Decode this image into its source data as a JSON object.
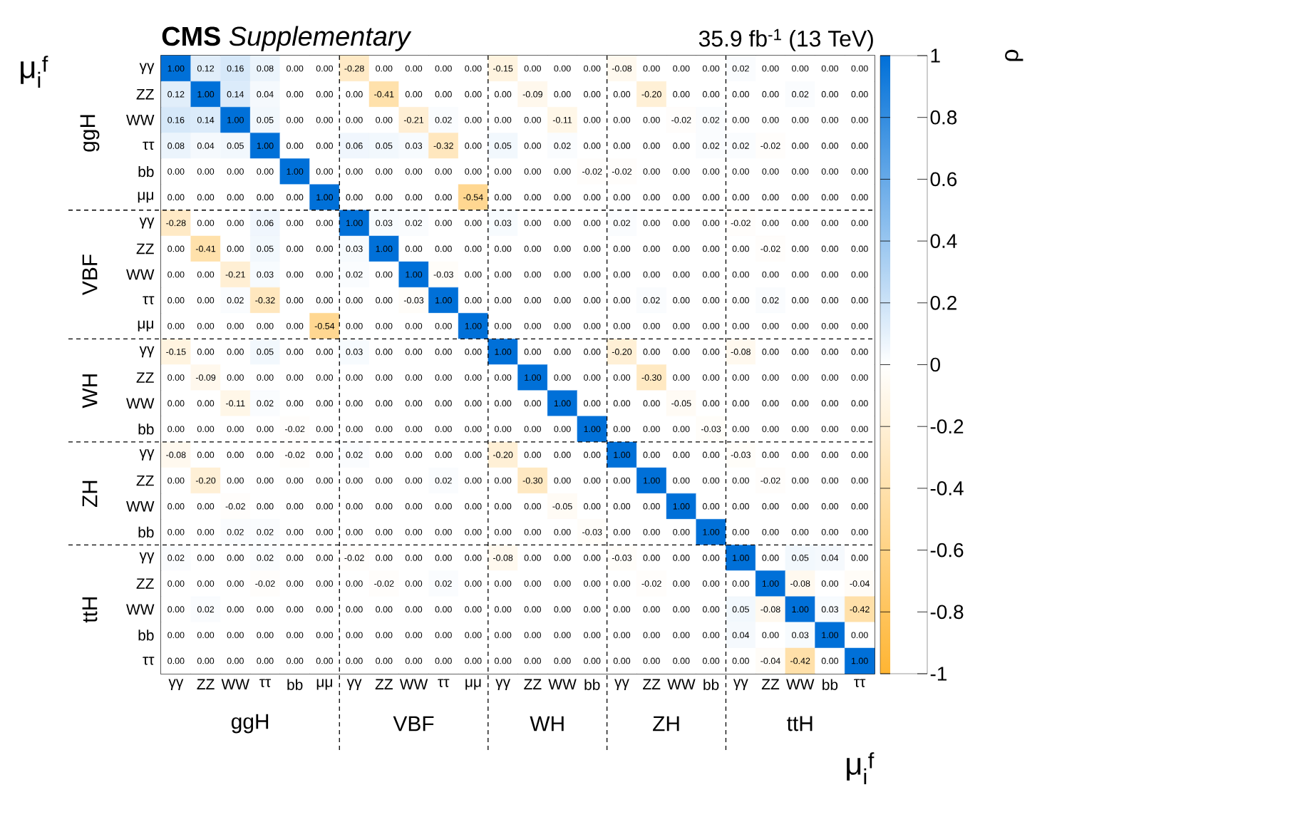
{
  "chart_data": {
    "type": "heatmap",
    "title": "**CMS** *Supplementary*",
    "subtitle": "35.9 fb$^{-1}$ (13 TeV)",
    "xlabel": "μ$_{i}$$^{f}$",
    "ylabel": "μ$_{i}$$^{f}$",
    "clabel": "ρ",
    "categories": [
      "γγ",
      "ZZ",
      "WW",
      "ττ",
      "bb",
      "μμ",
      "γγ",
      "ZZ",
      "WW",
      "ττ",
      "μμ",
      "γγ",
      "ZZ",
      "WW",
      "bb",
      "γγ",
      "ZZ",
      "WW",
      "bb",
      "γγ",
      "ZZ",
      "WW",
      "bb",
      "ττ"
    ],
    "y_categories": [
      "γγ",
      "ZZ",
      "WW",
      "ττ",
      "bb",
      "μμ",
      "γγ",
      "ZZ",
      "WW",
      "ττ",
      "μμ",
      "γγ",
      "ZZ",
      "WW",
      "bb",
      "γγ",
      "ZZ",
      "WW",
      "bb",
      "γγ",
      "ZZ",
      "WW",
      "bb",
      "ττ"
    ],
    "cells": [
      [
        1.0,
        0.12,
        0.16,
        0.08,
        0,
        0,
        -0.28,
        0,
        0,
        0,
        0,
        -0.15,
        0,
        0,
        0,
        -0.08,
        0,
        0,
        0,
        0.02,
        0,
        0,
        0,
        0
      ],
      [
        0.12,
        1.0,
        0.14,
        0.04,
        0,
        0,
        0,
        -0.41,
        0,
        0,
        0,
        0,
        -0.09,
        0,
        0,
        0,
        -0.2,
        0,
        0,
        0,
        0,
        0.02,
        0,
        0
      ],
      [
        0.16,
        0.14,
        1.0,
        0.05,
        0,
        0,
        0,
        0,
        -0.21,
        0.02,
        0,
        0,
        0,
        -0.11,
        0,
        0,
        0,
        -0.02,
        0.02,
        0,
        0,
        0,
        0,
        0
      ],
      [
        0.08,
        0.04,
        0.05,
        1.0,
        0,
        0,
        0.06,
        0.05,
        0.03,
        -0.32,
        0,
        0.05,
        0,
        0.02,
        0,
        0,
        0,
        0,
        0.02,
        0.02,
        -0.02,
        0,
        0,
        0
      ],
      [
        0,
        0,
        0,
        0,
        1.0,
        0,
        0,
        0,
        0,
        0,
        0,
        0,
        0,
        0,
        -0.02,
        -0.02,
        0,
        0,
        0,
        0,
        0,
        0,
        0,
        0
      ],
      [
        0,
        0,
        0,
        0,
        0,
        1.0,
        0,
        0,
        0,
        0,
        -0.54,
        0,
        0,
        0,
        0,
        0,
        0,
        0,
        0,
        0,
        0,
        0,
        0,
        0
      ],
      [
        -0.28,
        0,
        0,
        0.06,
        0,
        0,
        1.0,
        0.03,
        0.02,
        0,
        0,
        0.03,
        0,
        0,
        0,
        0.02,
        0,
        0,
        0,
        -0.02,
        0,
        0,
        0,
        0
      ],
      [
        0,
        -0.41,
        0,
        0.05,
        0,
        0,
        0.03,
        1.0,
        0,
        0,
        0,
        0,
        0,
        0,
        0,
        0,
        0,
        0,
        0,
        0,
        -0.02,
        0,
        0,
        0
      ],
      [
        0,
        0,
        -0.21,
        0.03,
        0,
        0,
        0.02,
        0,
        1.0,
        -0.03,
        0,
        0,
        0,
        0,
        0,
        0,
        0,
        0,
        0,
        0,
        0,
        0,
        0,
        0
      ],
      [
        0,
        0,
        0.02,
        -0.32,
        0,
        0,
        0,
        0,
        -0.03,
        1.0,
        0,
        0,
        0,
        0,
        0,
        0,
        0.02,
        0,
        0,
        0,
        0.02,
        0,
        0,
        0
      ],
      [
        0,
        0,
        0,
        0,
        0,
        -0.54,
        0,
        0,
        0,
        0,
        1.0,
        0,
        0,
        0,
        0,
        0,
        0,
        0,
        0,
        0,
        0,
        0,
        0,
        0
      ],
      [
        -0.15,
        0,
        0,
        0.05,
        0,
        0,
        0.03,
        0,
        0,
        0,
        0,
        1.0,
        0,
        0,
        0,
        -0.2,
        0,
        0,
        0,
        -0.08,
        0,
        0,
        0,
        0
      ],
      [
        0,
        -0.09,
        0,
        0,
        0,
        0,
        0,
        0,
        0,
        0,
        0,
        0,
        1.0,
        0,
        0,
        0,
        -0.3,
        0,
        0,
        0,
        0,
        0,
        0,
        0
      ],
      [
        0,
        0,
        -0.11,
        0.02,
        0,
        0,
        0,
        0,
        0,
        0,
        0,
        0,
        0,
        1.0,
        0,
        0,
        0,
        -0.05,
        0,
        0,
        0,
        0,
        0,
        0
      ],
      [
        0,
        0,
        0,
        0,
        -0.02,
        0,
        0,
        0,
        0,
        0,
        0,
        0,
        0,
        0,
        1.0,
        0,
        0,
        0,
        -0.03,
        0,
        0,
        0,
        0,
        0
      ],
      [
        -0.08,
        0,
        0,
        0,
        -0.02,
        0,
        0.02,
        0,
        0,
        0,
        0,
        -0.2,
        0,
        0,
        0,
        1.0,
        0,
        0,
        0,
        -0.03,
        0,
        0,
        0,
        0
      ],
      [
        0,
        -0.2,
        0,
        0,
        0,
        0,
        0,
        0,
        0,
        0.02,
        0,
        0,
        -0.3,
        0,
        0,
        0,
        1.0,
        0,
        0,
        0,
        -0.02,
        0,
        0,
        0
      ],
      [
        0,
        0,
        -0.02,
        0,
        0,
        0,
        0,
        0,
        0,
        0,
        0,
        0,
        0,
        -0.05,
        0,
        0,
        0,
        1.0,
        0,
        0,
        0,
        0,
        0,
        0
      ],
      [
        0,
        0,
        0.02,
        0.02,
        0,
        0,
        0,
        0,
        0,
        0,
        0,
        0,
        0,
        0,
        -0.03,
        0,
        0,
        0,
        1.0,
        0,
        0,
        0,
        0,
        0
      ],
      [
        0.02,
        0,
        0,
        0.02,
        0,
        0,
        -0.02,
        0,
        0,
        0,
        0,
        -0.08,
        0,
        0,
        0,
        -0.03,
        0,
        0,
        0,
        1.0,
        0,
        0.05,
        0.04,
        0
      ],
      [
        0,
        0,
        0,
        -0.02,
        0,
        0,
        0,
        -0.02,
        0,
        0.02,
        0,
        0,
        0,
        0,
        0,
        0,
        -0.02,
        0,
        0,
        0,
        1.0,
        -0.08,
        0,
        -0.04
      ],
      [
        0,
        0.02,
        0,
        0,
        0,
        0,
        0,
        0,
        0,
        0,
        0,
        0,
        0,
        0,
        0,
        0,
        0,
        0,
        0,
        0.05,
        -0.08,
        1.0,
        0.03,
        -0.42
      ],
      [
        0,
        0,
        0,
        0,
        0,
        0,
        0,
        0,
        0,
        0,
        0,
        0,
        0,
        0,
        0,
        0,
        0,
        0,
        0,
        0.04,
        0,
        0.03,
        1.0,
        0
      ],
      [
        0,
        0,
        0,
        0,
        0,
        0,
        0,
        0,
        0,
        0,
        0,
        0,
        0,
        0,
        0,
        0,
        0,
        0,
        0,
        0,
        -0.04,
        -0.42,
        0,
        1.0
      ]
    ],
    "cell_labels": [
      [
        "1.00",
        "0.12",
        "0.16",
        "0.08",
        "0.00",
        "0.00",
        "-0.28",
        "0.00",
        "0.00",
        "0.00",
        "0.00",
        "-0.15",
        "0.00",
        "0.00",
        "0.00",
        "-0.08",
        "0.00",
        "0.00",
        "0.00",
        "0.02",
        "0.00",
        "0.00",
        "0.00",
        "0.00"
      ],
      [
        "0.12",
        "1.00",
        "0.14",
        "0.04",
        "0.00",
        "0.00",
        "0.00",
        "-0.41",
        "0.00",
        "0.00",
        "0.00",
        "0.00",
        "-0.09",
        "0.00",
        "0.00",
        "0.00",
        "-0.20",
        "0.00",
        "0.00",
        "0.00",
        "0.00",
        "0.02",
        "0.00",
        "0.00"
      ],
      [
        "0.16",
        "0.14",
        "1.00",
        "0.05",
        "0.00",
        "0.00",
        "0.00",
        "0.00",
        "-0.21",
        "0.02",
        "0.00",
        "0.00",
        "0.00",
        "-0.11",
        "0.00",
        "0.00",
        "0.00",
        "-0.02",
        "0.02",
        "0.00",
        "0.00",
        "0.00",
        "0.00",
        "0.00"
      ],
      [
        "0.08",
        "0.04",
        "0.05",
        "1.00",
        "0.00",
        "0.00",
        "0.06",
        "0.05",
        "0.03",
        "-0.32",
        "0.00",
        "0.05",
        "0.00",
        "0.02",
        "0.00",
        "0.00",
        "0.00",
        "0.00",
        "0.02",
        "0.02",
        "-0.02",
        "0.00",
        "0.00",
        "0.00"
      ],
      [
        "0.00",
        "0.00",
        "0.00",
        "0.00",
        "1.00",
        "0.00",
        "0.00",
        "0.00",
        "0.00",
        "0.00",
        "0.00",
        "0.00",
        "0.00",
        "0.00",
        "-0.02",
        "-0.02",
        "0.00",
        "0.00",
        "0.00",
        "0.00",
        "0.00",
        "0.00",
        "0.00",
        "0.00"
      ],
      [
        "0.00",
        "0.00",
        "0.00",
        "0.00",
        "0.00",
        "1.00",
        "0.00",
        "0.00",
        "0.00",
        "0.00",
        "-0.54",
        "0.00",
        "0.00",
        "0.00",
        "0.00",
        "0.00",
        "0.00",
        "0.00",
        "0.00",
        "0.00",
        "0.00",
        "0.00",
        "0.00",
        "0.00"
      ],
      [
        "-0.28",
        "0.00",
        "0.00",
        "0.06",
        "0.00",
        "0.00",
        "1.00",
        "0.03",
        "0.02",
        "0.00",
        "0.00",
        "0.03",
        "0.00",
        "0.00",
        "0.00",
        "0.02",
        "0.00",
        "0.00",
        "0.00",
        "-0.02",
        "0.00",
        "0.00",
        "0.00",
        "0.00"
      ],
      [
        "0.00",
        "-0.41",
        "0.00",
        "0.05",
        "0.00",
        "0.00",
        "0.03",
        "1.00",
        "0.00",
        "0.00",
        "0.00",
        "0.00",
        "0.00",
        "0.00",
        "0.00",
        "0.00",
        "0.00",
        "0.00",
        "0.00",
        "0.00",
        "-0.02",
        "0.00",
        "0.00",
        "0.00"
      ],
      [
        "0.00",
        "0.00",
        "-0.21",
        "0.03",
        "0.00",
        "0.00",
        "0.02",
        "0.00",
        "1.00",
        "-0.03",
        "0.00",
        "0.00",
        "0.00",
        "0.00",
        "0.00",
        "0.00",
        "0.00",
        "0.00",
        "0.00",
        "0.00",
        "0.00",
        "0.00",
        "0.00",
        "0.00"
      ],
      [
        "0.00",
        "0.00",
        "0.02",
        "-0.32",
        "0.00",
        "0.00",
        "0.00",
        "0.00",
        "-0.03",
        "1.00",
        "0.00",
        "0.00",
        "0.00",
        "0.00",
        "0.00",
        "0.00",
        "0.02",
        "0.00",
        "0.00",
        "0.00",
        "0.02",
        "0.00",
        "0.00",
        "0.00"
      ],
      [
        "0.00",
        "0.00",
        "0.00",
        "0.00",
        "0.00",
        "-0.54",
        "0.00",
        "0.00",
        "0.00",
        "0.00",
        "1.00",
        "0.00",
        "0.00",
        "0.00",
        "0.00",
        "0.00",
        "0.00",
        "0.00",
        "0.00",
        "0.00",
        "0.00",
        "0.00",
        "0.00",
        "0.00"
      ],
      [
        "-0.15",
        "0.00",
        "0.00",
        "0.05",
        "0.00",
        "0.00",
        "0.03",
        "0.00",
        "0.00",
        "0.00",
        "0.00",
        "1.00",
        "0.00",
        "0.00",
        "0.00",
        "-0.20",
        "0.00",
        "0.00",
        "0.00",
        "-0.08",
        "0.00",
        "0.00",
        "0.00",
        "0.00"
      ],
      [
        "0.00",
        "-0.09",
        "0.00",
        "0.00",
        "0.00",
        "0.00",
        "0.00",
        "0.00",
        "0.00",
        "0.00",
        "0.00",
        "0.00",
        "1.00",
        "0.00",
        "0.00",
        "0.00",
        "-0.30",
        "0.00",
        "0.00",
        "0.00",
        "0.00",
        "0.00",
        "0.00",
        "0.00"
      ],
      [
        "0.00",
        "0.00",
        "-0.11",
        "0.02",
        "0.00",
        "0.00",
        "0.00",
        "0.00",
        "0.00",
        "0.00",
        "0.00",
        "0.00",
        "0.00",
        "1.00",
        "0.00",
        "0.00",
        "0.00",
        "-0.05",
        "0.00",
        "0.00",
        "0.00",
        "0.00",
        "0.00",
        "0.00"
      ],
      [
        "0.00",
        "0.00",
        "0.00",
        "0.00",
        "-0.02",
        "0.00",
        "0.00",
        "0.00",
        "0.00",
        "0.00",
        "0.00",
        "0.00",
        "0.00",
        "0.00",
        "1.00",
        "0.00",
        "0.00",
        "0.00",
        "-0.03",
        "0.00",
        "0.00",
        "0.00",
        "0.00",
        "0.00"
      ],
      [
        "-0.08",
        "0.00",
        "0.00",
        "0.00",
        "-0.02",
        "0.00",
        "0.02",
        "0.00",
        "0.00",
        "0.00",
        "0.00",
        "-0.20",
        "0.00",
        "0.00",
        "0.00",
        "1.00",
        "0.00",
        "0.00",
        "0.00",
        "-0.03",
        "0.00",
        "0.00",
        "0.00",
        "0.00"
      ],
      [
        "0.00",
        "-0.20",
        "0.00",
        "0.00",
        "0.00",
        "0.00",
        "0.00",
        "0.00",
        "0.00",
        "0.02",
        "0.00",
        "0.00",
        "-0.30",
        "0.00",
        "0.00",
        "0.00",
        "1.00",
        "0.00",
        "0.00",
        "0.00",
        "-0.02",
        "0.00",
        "0.00",
        "0.00"
      ],
      [
        "0.00",
        "0.00",
        "-0.02",
        "0.00",
        "0.00",
        "0.00",
        "0.00",
        "0.00",
        "0.00",
        "0.00",
        "0.00",
        "0.00",
        "0.00",
        "-0.05",
        "0.00",
        "0.00",
        "0.00",
        "1.00",
        "0.00",
        "0.00",
        "0.00",
        "0.00",
        "0.00",
        "0.00"
      ],
      [
        "0.00",
        "0.00",
        "0.02",
        "0.02",
        "0.00",
        "0.00",
        "0.00",
        "0.00",
        "0.00",
        "0.00",
        "0.00",
        "0.00",
        "0.00",
        "0.00",
        "-0.03",
        "0.00",
        "0.00",
        "0.00",
        "1.00",
        "0.00",
        "0.00",
        "0.00",
        "0.00",
        "0.00"
      ],
      [
        "0.02",
        "0.00",
        "0.00",
        "0.02",
        "0.00",
        "0.00",
        "-0.02",
        "0.00",
        "0.00",
        "0.00",
        "0.00",
        "-0.08",
        "0.00",
        "0.00",
        "0.00",
        "-0.03",
        "0.00",
        "0.00",
        "0.00",
        "1.00",
        "0.00",
        "0.05",
        "0.04",
        "0.00"
      ],
      [
        "0.00",
        "0.00",
        "0.00",
        "-0.02",
        "0.00",
        "0.00",
        "0.00",
        "-0.02",
        "0.00",
        "0.02",
        "0.00",
        "0.00",
        "0.00",
        "0.00",
        "0.00",
        "0.00",
        "-0.02",
        "0.00",
        "0.00",
        "0.00",
        "1.00",
        "-0.08",
        "0.00",
        "-0.04"
      ],
      [
        "0.00",
        "0.02",
        "0.00",
        "0.00",
        "0.00",
        "0.00",
        "0.00",
        "0.00",
        "0.00",
        "0.00",
        "0.00",
        "0.00",
        "0.00",
        "0.00",
        "0.00",
        "0.00",
        "0.00",
        "0.00",
        "0.00",
        "0.05",
        "-0.08",
        "1.00",
        "0.03",
        "-0.42"
      ],
      [
        "0.00",
        "0.00",
        "0.00",
        "0.00",
        "0.00",
        "0.00",
        "0.00",
        "0.00",
        "0.00",
        "0.00",
        "0.00",
        "0.00",
        "0.00",
        "0.00",
        "0.00",
        "0.00",
        "0.00",
        "0.00",
        "0.00",
        "0.04",
        "0.00",
        "0.03",
        "1.00",
        "0.00"
      ],
      [
        "0.00",
        "0.00",
        "0.00",
        "0.00",
        "0.00",
        "0.00",
        "0.00",
        "0.00",
        "0.00",
        "0.00",
        "0.00",
        "0.00",
        "0.00",
        "0.00",
        "0.00",
        "0.00",
        "0.00",
        "0.00",
        "0.00",
        "0.00",
        "-0.04",
        "-0.42",
        "0.00",
        "1.00"
      ]
    ],
    "clim": [
      -1,
      1
    ],
    "cticks": [
      -1,
      -0.8,
      -0.6,
      -0.4,
      -0.2,
      0,
      0.2,
      0.4,
      0.6,
      0.8,
      1
    ],
    "annotations": [
      "ggH",
      "VBF",
      "WH",
      "ZH",
      "ttH",
      "ggH",
      "VBF",
      "WH",
      "ZH",
      "ttH"
    ]
  }
}
